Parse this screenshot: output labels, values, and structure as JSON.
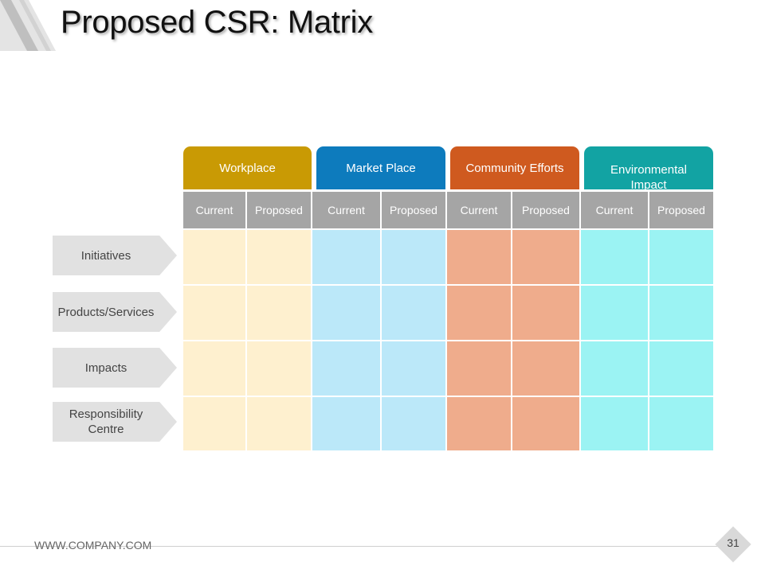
{
  "slide": {
    "title": "Proposed CSR: Matrix",
    "footer_url": "WWW.COMPANY.COM",
    "page_number": "31"
  },
  "matrix": {
    "categories": [
      {
        "label": "Workplace",
        "header_color": "#c99a04",
        "cell_color": "#fef0cf"
      },
      {
        "label": "Market Place",
        "header_color": "#0d7bbd",
        "cell_color": "#bbe8f9"
      },
      {
        "label": "Community Efforts",
        "header_color": "#cf5a1f",
        "cell_color": "#efac8c"
      },
      {
        "label": "Environmental Impact",
        "header_color": "#12a3a3",
        "cell_color": "#9bf3f3"
      }
    ],
    "sub_columns": [
      "Current",
      "Proposed",
      "Current",
      "Proposed",
      "Current",
      "Proposed",
      "Current",
      "Proposed"
    ],
    "rows": [
      "Initiatives",
      "Products/Services",
      "Impacts",
      "Responsibility Centre"
    ],
    "sub_header_color": "#a5a5a5",
    "row_label_color": "#e1e1e1"
  }
}
